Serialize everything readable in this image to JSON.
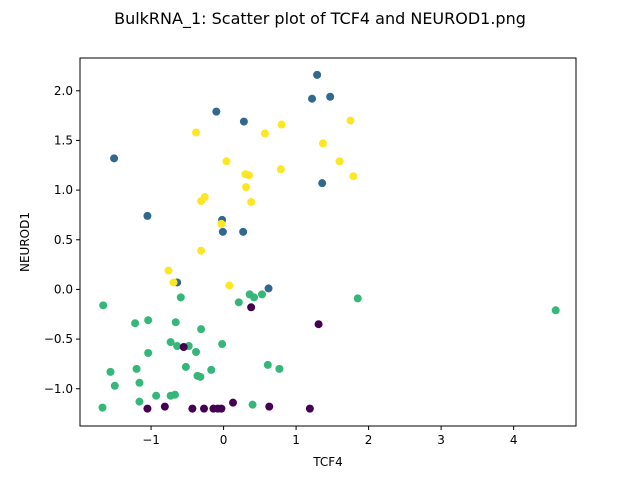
{
  "chart_data": {
    "type": "scatter",
    "title": "BulkRNA_1: Scatter plot of TCF4 and NEUROD1.png",
    "xlabel": "TCF4",
    "ylabel": "NEUROD1",
    "xlim": [
      -1.98,
      4.86
    ],
    "ylim": [
      -1.375,
      2.33
    ],
    "xticks": [
      -1,
      0,
      1,
      2,
      3,
      4
    ],
    "yticks": [
      -1.0,
      -0.5,
      0.0,
      0.5,
      1.0,
      1.5,
      2.0
    ],
    "xtick_labels": [
      "−1",
      "0",
      "1",
      "2",
      "3",
      "4"
    ],
    "ytick_labels": [
      "−1.0",
      "−0.5",
      "0.0",
      "0.5",
      "1.0",
      "1.5",
      "2.0"
    ],
    "grid": false,
    "colors": {
      "dark_purple": "#440154",
      "teal_blue": "#31688e",
      "green": "#35b779",
      "yellow": "#fde725"
    },
    "series": [
      {
        "color": "#31688e",
        "points": [
          [
            1.29,
            2.16
          ],
          [
            1.47,
            1.94
          ],
          [
            1.22,
            1.92
          ],
          [
            -0.1,
            1.79
          ],
          [
            0.28,
            1.69
          ],
          [
            -1.51,
            1.32
          ],
          [
            1.36,
            1.07
          ],
          [
            -1.05,
            0.74
          ],
          [
            -0.02,
            0.7
          ],
          [
            -0.01,
            0.58
          ],
          [
            0.27,
            0.58
          ],
          [
            -0.64,
            0.07
          ],
          [
            0.62,
            0.01
          ]
        ]
      },
      {
        "color": "#fde725",
        "points": [
          [
            1.75,
            1.7
          ],
          [
            0.8,
            1.66
          ],
          [
            -0.38,
            1.58
          ],
          [
            0.57,
            1.57
          ],
          [
            1.37,
            1.47
          ],
          [
            0.04,
            1.29
          ],
          [
            1.6,
            1.29
          ],
          [
            0.79,
            1.21
          ],
          [
            0.3,
            1.16
          ],
          [
            0.35,
            1.15
          ],
          [
            1.79,
            1.14
          ],
          [
            0.31,
            1.03
          ],
          [
            -0.26,
            0.93
          ],
          [
            -0.31,
            0.89
          ],
          [
            0.38,
            0.88
          ],
          [
            -0.03,
            0.66
          ],
          [
            -0.31,
            0.39
          ],
          [
            -0.76,
            0.19
          ],
          [
            -0.69,
            0.07
          ],
          [
            0.08,
            0.04
          ]
        ]
      },
      {
        "color": "#35b779",
        "points": [
          [
            4.58,
            -0.21
          ],
          [
            1.85,
            -0.09
          ],
          [
            0.53,
            -0.05
          ],
          [
            0.36,
            -0.05
          ],
          [
            0.42,
            -0.08
          ],
          [
            -0.59,
            -0.08
          ],
          [
            0.21,
            -0.13
          ],
          [
            -1.66,
            -0.16
          ],
          [
            -1.04,
            -0.31
          ],
          [
            -1.22,
            -0.34
          ],
          [
            -0.66,
            -0.33
          ],
          [
            -0.31,
            -0.4
          ],
          [
            -0.73,
            -0.53
          ],
          [
            -0.64,
            -0.57
          ],
          [
            -0.48,
            -0.57
          ],
          [
            -0.02,
            -0.55
          ],
          [
            -0.38,
            -0.63
          ],
          [
            -1.04,
            -0.64
          ],
          [
            0.61,
            -0.76
          ],
          [
            -0.52,
            -0.78
          ],
          [
            0.77,
            -0.8
          ],
          [
            -0.17,
            -0.81
          ],
          [
            -1.2,
            -0.8
          ],
          [
            -1.56,
            -0.83
          ],
          [
            -0.36,
            -0.87
          ],
          [
            -0.32,
            -0.88
          ],
          [
            -1.16,
            -0.94
          ],
          [
            -1.5,
            -0.97
          ],
          [
            -0.73,
            -1.07
          ],
          [
            -0.67,
            -1.06
          ],
          [
            -0.93,
            -1.07
          ],
          [
            -1.16,
            -1.13
          ],
          [
            0.4,
            -1.16
          ],
          [
            -1.67,
            -1.19
          ]
        ]
      },
      {
        "color": "#440154",
        "points": [
          [
            0.38,
            -0.18
          ],
          [
            1.31,
            -0.35
          ],
          [
            -0.55,
            -0.58
          ],
          [
            0.13,
            -1.14
          ],
          [
            -1.05,
            -1.2
          ],
          [
            -0.81,
            -1.18
          ],
          [
            -0.43,
            -1.2
          ],
          [
            -0.27,
            -1.2
          ],
          [
            -0.14,
            -1.2
          ],
          [
            -0.08,
            -1.2
          ],
          [
            -0.03,
            -1.2
          ],
          [
            0.63,
            -1.18
          ],
          [
            1.19,
            -1.2
          ]
        ]
      }
    ]
  }
}
